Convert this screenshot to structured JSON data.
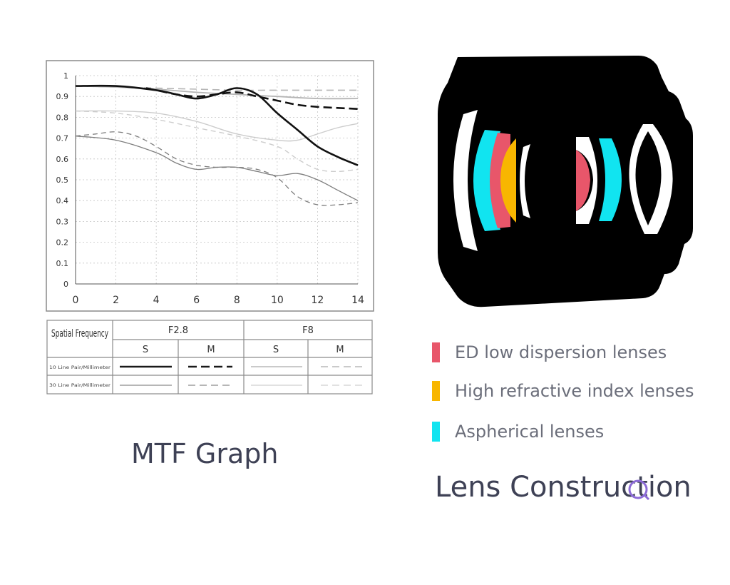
{
  "colors": {
    "ed": "#e8566a",
    "high_refractive": "#f8b600",
    "aspherical": "#11e4f0",
    "caption": "#3e4155",
    "legend_text": "#6b6e7a"
  },
  "chart_data": {
    "type": "line",
    "xlabel": "",
    "ylabel": "",
    "xlim": [
      0,
      14
    ],
    "ylim": [
      0,
      1
    ],
    "x_ticks": [
      "0",
      "2",
      "4",
      "6",
      "8",
      "10",
      "12",
      "14"
    ],
    "y_ticks": [
      "0",
      "0.1",
      "0.2",
      "0.3",
      "0.4",
      "0.5",
      "0.6",
      "0.7",
      "0.8",
      "0.9",
      "1"
    ],
    "grid": true,
    "series": [
      {
        "aperture": "F2.8",
        "orientation": "S",
        "frequency": "10 Line Pair/Millimeter",
        "style": "solid-thick",
        "x": [
          0,
          2,
          4,
          5,
          6,
          7,
          8,
          9,
          10,
          11,
          12,
          13,
          14
        ],
        "y": [
          0.95,
          0.95,
          0.93,
          0.91,
          0.89,
          0.91,
          0.94,
          0.91,
          0.82,
          0.74,
          0.66,
          0.61,
          0.57
        ]
      },
      {
        "aperture": "F2.8",
        "orientation": "M",
        "frequency": "10 Line Pair/Millimeter",
        "style": "dashed-thick",
        "x": [
          3.5,
          4,
          5,
          6,
          7,
          8,
          9,
          10,
          11,
          12,
          13,
          14
        ],
        "y": [
          0.94,
          0.93,
          0.91,
          0.9,
          0.91,
          0.92,
          0.9,
          0.88,
          0.86,
          0.85,
          0.845,
          0.84
        ]
      },
      {
        "aperture": "F8",
        "orientation": "S",
        "frequency": "10 Line Pair/Millimeter",
        "style": "solid-light",
        "x": [
          0,
          2,
          4,
          6,
          8,
          10,
          12,
          14
        ],
        "y": [
          0.95,
          0.945,
          0.935,
          0.92,
          0.91,
          0.9,
          0.89,
          0.89
        ]
      },
      {
        "aperture": "F8",
        "orientation": "M",
        "frequency": "10 Line Pair/Millimeter",
        "style": "dashed-light",
        "x": [
          0,
          2,
          4,
          6,
          8,
          10,
          12,
          14
        ],
        "y": [
          0.95,
          0.945,
          0.94,
          0.935,
          0.93,
          0.93,
          0.93,
          0.93
        ]
      },
      {
        "aperture": "F2.8",
        "orientation": "S",
        "frequency": "30 Line Pair/Millimeter",
        "style": "solid-thin",
        "x": [
          0,
          2,
          4,
          5,
          6,
          7,
          8,
          9,
          10,
          11,
          12,
          13,
          14
        ],
        "y": [
          0.71,
          0.69,
          0.63,
          0.58,
          0.55,
          0.56,
          0.56,
          0.54,
          0.52,
          0.53,
          0.5,
          0.45,
          0.4
        ]
      },
      {
        "aperture": "F2.8",
        "orientation": "M",
        "frequency": "30 Line Pair/Millimeter",
        "style": "dashed-thin",
        "x": [
          0,
          1,
          2,
          3,
          4,
          5,
          6,
          7,
          8,
          9,
          10,
          11,
          12,
          13,
          14
        ],
        "y": [
          0.71,
          0.72,
          0.73,
          0.71,
          0.66,
          0.6,
          0.57,
          0.56,
          0.56,
          0.55,
          0.51,
          0.42,
          0.38,
          0.38,
          0.39
        ]
      },
      {
        "aperture": "F8",
        "orientation": "S",
        "frequency": "30 Line Pair/Millimeter",
        "style": "solid-pale",
        "x": [
          0,
          2,
          4,
          6,
          8,
          10,
          11,
          12,
          13,
          14
        ],
        "y": [
          0.83,
          0.83,
          0.82,
          0.78,
          0.72,
          0.69,
          0.69,
          0.72,
          0.75,
          0.77
        ]
      },
      {
        "aperture": "F8",
        "orientation": "M",
        "frequency": "30 Line Pair/Millimeter",
        "style": "dashed-pale",
        "x": [
          0,
          2,
          4,
          6,
          8,
          10,
          11,
          12,
          13,
          14
        ],
        "y": [
          0.83,
          0.82,
          0.79,
          0.75,
          0.71,
          0.66,
          0.6,
          0.55,
          0.54,
          0.55
        ]
      }
    ]
  },
  "legend_table": {
    "row_header": "Spatial Frequency",
    "apertures": [
      "F2.8",
      "F8"
    ],
    "orientations": [
      "S",
      "M",
      "S",
      "M"
    ],
    "rows": [
      "10 Line Pair/Millimeter",
      "30 Line Pair/Millimeter"
    ]
  },
  "mtf_caption": "MTF Graph",
  "lens_legend": [
    {
      "label": "ED low dispersion lenses",
      "color": "#e8566a"
    },
    {
      "label": "High refractive index lenses",
      "color": "#f8b600"
    },
    {
      "label": "Aspherical lenses",
      "color": "#11e4f0"
    }
  ],
  "lens_caption": "Lens Construction"
}
